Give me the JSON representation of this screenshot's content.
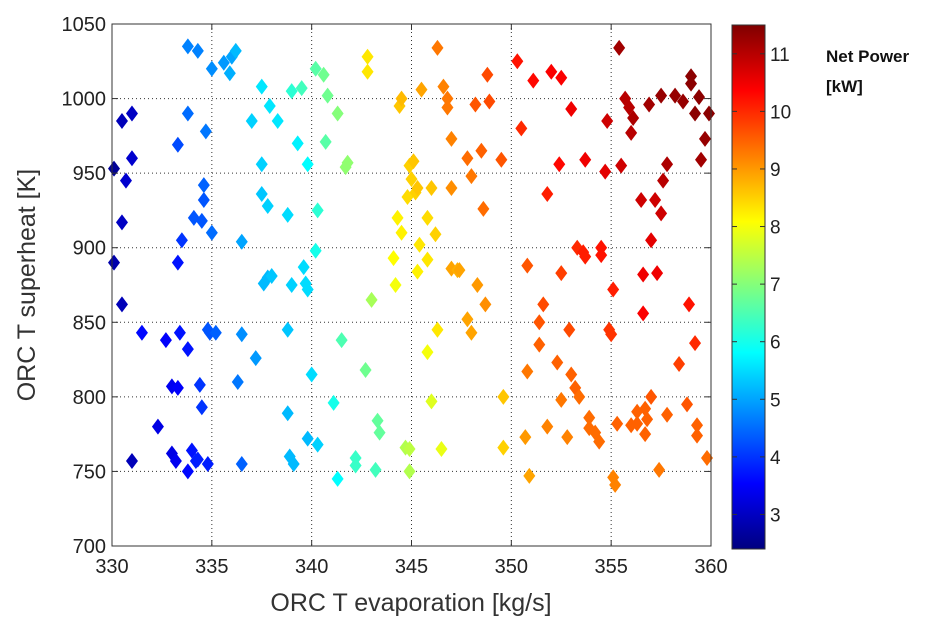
{
  "chart_data": {
    "type": "scatter",
    "xlabel": "ORC T evaporation [kg/s]",
    "ylabel": "ORC T superheat [K]",
    "xlim": [
      330,
      360
    ],
    "ylim": [
      700,
      1050
    ],
    "xticks": [
      "330",
      "335",
      "340",
      "345",
      "350",
      "355",
      "360"
    ],
    "yticks": [
      "700",
      "750",
      "800",
      "850",
      "900",
      "950",
      "1000",
      "1050"
    ],
    "grid": true,
    "marker": "diamond",
    "colormap": "jet",
    "colorbar": {
      "title_line1": "Net Power",
      "title_line2": "[kW]",
      "range": [
        2.4,
        11.5
      ],
      "ticks": [
        "3",
        "4",
        "5",
        "6",
        "7",
        "8",
        "9",
        "10",
        "11"
      ]
    },
    "points": [
      [
        330.1,
        953,
        2.6
      ],
      [
        330.5,
        985,
        2.9
      ],
      [
        331.0,
        990,
        3.0
      ],
      [
        331.0,
        960,
        3.1
      ],
      [
        330.7,
        945,
        3.1
      ],
      [
        330.5,
        917,
        3.0
      ],
      [
        330.1,
        890,
        2.8
      ],
      [
        330.5,
        862,
        2.9
      ],
      [
        331.0,
        757,
        2.9
      ],
      [
        331.5,
        843,
        3.6
      ],
      [
        332.3,
        780,
        3.3
      ],
      [
        332.7,
        838,
        3.5
      ],
      [
        333.0,
        807,
        3.4
      ],
      [
        333.0,
        762,
        3.3
      ],
      [
        333.2,
        757,
        3.4
      ],
      [
        333.4,
        843,
        3.7
      ],
      [
        333.3,
        806,
        3.5
      ],
      [
        333.3,
        969,
        4.2
      ],
      [
        333.3,
        890,
        3.7
      ],
      [
        333.5,
        905,
        4.0
      ],
      [
        333.8,
        750,
        3.6
      ],
      [
        333.8,
        832,
        3.7
      ],
      [
        333.8,
        990,
        4.5
      ],
      [
        334.0,
        764,
        3.7
      ],
      [
        334.1,
        920,
        4.3
      ],
      [
        334.2,
        757,
        3.8
      ],
      [
        334.3,
        758,
        3.8
      ],
      [
        334.4,
        808,
        4.0
      ],
      [
        334.5,
        918,
        4.3
      ],
      [
        334.5,
        793,
        4.0
      ],
      [
        334.6,
        932,
        4.3
      ],
      [
        334.6,
        942,
        4.4
      ],
      [
        334.7,
        978,
        4.6
      ],
      [
        334.8,
        755,
        3.8
      ],
      [
        334.8,
        845,
        4.3
      ],
      [
        334.9,
        843,
        4.3
      ],
      [
        335.0,
        910,
        4.5
      ],
      [
        335.2,
        843,
        4.4
      ],
      [
        333.8,
        1035,
        4.7
      ],
      [
        334.3,
        1032,
        4.7
      ],
      [
        335.0,
        1020,
        4.8
      ],
      [
        335.6,
        1024,
        4.9
      ],
      [
        336.0,
        1028,
        5.0
      ],
      [
        336.2,
        1032,
        5.2
      ],
      [
        335.9,
        1017,
        5.1
      ],
      [
        336.3,
        810,
        4.6
      ],
      [
        336.5,
        755,
        4.4
      ],
      [
        336.5,
        842,
        4.8
      ],
      [
        336.5,
        904,
        5.0
      ],
      [
        337.0,
        985,
        5.4
      ],
      [
        337.2,
        826,
        4.9
      ],
      [
        337.5,
        956,
        5.4
      ],
      [
        337.5,
        936,
        5.3
      ],
      [
        337.5,
        1008,
        5.6
      ],
      [
        337.6,
        876,
        5.2
      ],
      [
        337.8,
        880,
        5.2
      ],
      [
        337.8,
        928,
        5.4
      ],
      [
        337.9,
        995,
        5.6
      ],
      [
        338.0,
        881,
        5.3
      ],
      [
        338.3,
        985,
        5.6
      ],
      [
        338.8,
        922,
        5.5
      ],
      [
        338.8,
        789,
        5.2
      ],
      [
        338.8,
        845,
        5.3
      ],
      [
        338.9,
        760,
        5.2
      ],
      [
        339.0,
        875,
        5.4
      ],
      [
        339.1,
        755,
        5.2
      ],
      [
        339.3,
        970,
        5.7
      ],
      [
        339.6,
        887,
        5.5
      ],
      [
        339.7,
        876,
        5.5
      ],
      [
        339.8,
        956,
        5.8
      ],
      [
        339.8,
        872,
        5.5
      ],
      [
        339.0,
        1005,
        6.2
      ],
      [
        339.5,
        1007,
        6.4
      ],
      [
        339.8,
        772,
        5.2
      ],
      [
        340.0,
        815,
        5.5
      ],
      [
        340.2,
        898,
        6.0
      ],
      [
        340.3,
        768,
        5.4
      ],
      [
        340.3,
        925,
        6.2
      ],
      [
        340.2,
        1020,
        6.6
      ],
      [
        340.6,
        1016,
        6.8
      ],
      [
        340.7,
        971,
        6.6
      ],
      [
        340.8,
        1002,
        6.8
      ],
      [
        341.1,
        796,
        6.0
      ],
      [
        341.3,
        990,
        7.0
      ],
      [
        341.3,
        745,
        5.8
      ],
      [
        341.5,
        838,
        6.5
      ],
      [
        341.7,
        954,
        7.1
      ],
      [
        341.8,
        957,
        7.1
      ],
      [
        342.2,
        759,
        6.3
      ],
      [
        342.2,
        754,
        6.3
      ],
      [
        342.7,
        818,
        6.8
      ],
      [
        343.2,
        751,
        6.4
      ],
      [
        343.3,
        784,
        6.7
      ],
      [
        343.4,
        776,
        6.7
      ],
      [
        343.0,
        865,
        7.3
      ],
      [
        342.8,
        1028,
        8.3
      ],
      [
        342.8,
        1018,
        8.3
      ],
      [
        344.2,
        875,
        8.0
      ],
      [
        344.1,
        893,
        8.1
      ],
      [
        344.3,
        920,
        8.2
      ],
      [
        344.4,
        995,
        8.6
      ],
      [
        344.5,
        1000,
        8.7
      ],
      [
        344.5,
        910,
        8.2
      ],
      [
        344.7,
        766,
        7.4
      ],
      [
        344.8,
        934,
        8.4
      ],
      [
        344.9,
        765,
        7.5
      ],
      [
        344.9,
        750,
        7.4
      ],
      [
        344.9,
        955,
        8.5
      ],
      [
        345.0,
        946,
        8.5
      ],
      [
        345.1,
        958,
        8.6
      ],
      [
        345.2,
        937,
        8.5
      ],
      [
        345.3,
        940,
        8.6
      ],
      [
        345.3,
        884,
        8.2
      ],
      [
        345.4,
        902,
        8.3
      ],
      [
        345.5,
        1006,
        8.9
      ],
      [
        345.8,
        920,
        8.4
      ],
      [
        345.8,
        830,
        8.0
      ],
      [
        345.8,
        892,
        8.3
      ],
      [
        346.0,
        797,
        7.8
      ],
      [
        346.0,
        940,
        8.6
      ],
      [
        346.2,
        909,
        8.5
      ],
      [
        346.3,
        845,
        8.3
      ],
      [
        346.5,
        765,
        7.9
      ],
      [
        346.3,
        1034,
        9.3
      ],
      [
        346.6,
        1008,
        9.2
      ],
      [
        346.8,
        1000,
        9.3
      ],
      [
        346.8,
        994,
        9.3
      ],
      [
        347.0,
        940,
        9.1
      ],
      [
        347.0,
        973,
        9.2
      ],
      [
        347.0,
        886,
        8.9
      ],
      [
        347.3,
        885,
        8.8
      ],
      [
        347.4,
        885,
        8.9
      ],
      [
        347.8,
        852,
        8.9
      ],
      [
        347.8,
        960,
        9.4
      ],
      [
        348.0,
        843,
        8.9
      ],
      [
        348.0,
        948,
        9.3
      ],
      [
        348.2,
        996,
        9.6
      ],
      [
        348.3,
        875,
        9.0
      ],
      [
        348.5,
        965,
        9.5
      ],
      [
        348.6,
        926,
        9.4
      ],
      [
        348.7,
        862,
        9.1
      ],
      [
        348.8,
        1016,
        9.7
      ],
      [
        348.9,
        998,
        9.7
      ],
      [
        349.5,
        959,
        9.6
      ],
      [
        349.6,
        800,
        8.6
      ],
      [
        349.6,
        766,
        8.5
      ],
      [
        350.3,
        1025,
        10.2
      ],
      [
        350.5,
        980,
        10.0
      ],
      [
        350.7,
        773,
        9.0
      ],
      [
        350.8,
        888,
        9.6
      ],
      [
        350.9,
        747,
        8.9
      ],
      [
        350.8,
        817,
        9.3
      ],
      [
        351.1,
        1012,
        10.3
      ],
      [
        351.4,
        835,
        9.5
      ],
      [
        351.4,
        850,
        9.6
      ],
      [
        351.6,
        862,
        9.7
      ],
      [
        351.8,
        936,
        10.1
      ],
      [
        351.8,
        780,
        9.2
      ],
      [
        352.0,
        1018,
        10.4
      ],
      [
        352.3,
        823,
        9.5
      ],
      [
        352.4,
        956,
        10.3
      ],
      [
        352.5,
        883,
        9.8
      ],
      [
        352.5,
        1014,
        10.4
      ],
      [
        352.5,
        798,
        9.3
      ],
      [
        352.8,
        773,
        9.2
      ],
      [
        352.9,
        845,
        9.7
      ],
      [
        353.0,
        993,
        10.5
      ],
      [
        353.0,
        815,
        9.5
      ],
      [
        353.2,
        806,
        9.5
      ],
      [
        353.4,
        800,
        9.4
      ],
      [
        353.3,
        900,
        10.0
      ],
      [
        353.6,
        897,
        10.1
      ],
      [
        353.7,
        959,
        10.5
      ],
      [
        353.7,
        894,
        10.1
      ],
      [
        353.9,
        786,
        9.4
      ],
      [
        353.9,
        779,
        9.4
      ],
      [
        354.2,
        776,
        9.4
      ],
      [
        354.4,
        770,
        9.4
      ],
      [
        354.5,
        900,
        10.2
      ],
      [
        354.5,
        895,
        10.2
      ],
      [
        354.7,
        951,
        10.6
      ],
      [
        354.8,
        985,
        10.8
      ],
      [
        354.9,
        845,
        9.9
      ],
      [
        355.1,
        872,
        10.1
      ],
      [
        355.0,
        842,
        9.9
      ],
      [
        355.1,
        746,
        9.2
      ],
      [
        355.2,
        741,
        9.2
      ],
      [
        355.3,
        782,
        9.5
      ],
      [
        355.4,
        1034,
        11.2
      ],
      [
        355.5,
        955,
        10.8
      ],
      [
        355.7,
        1000,
        11.0
      ],
      [
        355.9,
        994,
        11.0
      ],
      [
        356.0,
        781,
        9.5
      ],
      [
        356.0,
        977,
        11.0
      ],
      [
        356.1,
        987,
        11.1
      ],
      [
        356.3,
        782,
        9.5
      ],
      [
        356.3,
        790,
        9.5
      ],
      [
        356.5,
        932,
        10.8
      ],
      [
        356.6,
        856,
        10.4
      ],
      [
        356.6,
        882,
        10.5
      ],
      [
        356.7,
        792,
        9.5
      ],
      [
        356.7,
        775,
        9.5
      ],
      [
        356.8,
        785,
        9.5
      ],
      [
        356.9,
        996,
        11.2
      ],
      [
        357.0,
        905,
        10.6
      ],
      [
        357.0,
        800,
        9.6
      ],
      [
        357.2,
        932,
        10.8
      ],
      [
        357.3,
        883,
        10.5
      ],
      [
        357.4,
        751,
        9.3
      ],
      [
        357.5,
        923,
        10.8
      ],
      [
        357.6,
        945,
        11.0
      ],
      [
        357.8,
        956,
        11.1
      ],
      [
        357.8,
        788,
        9.5
      ],
      [
        357.5,
        1002,
        11.3
      ],
      [
        358.2,
        1002,
        11.3
      ],
      [
        358.4,
        822,
        9.8
      ],
      [
        358.6,
        998,
        11.3
      ],
      [
        358.8,
        795,
        9.6
      ],
      [
        358.9,
        862,
        10.2
      ],
      [
        359.0,
        1015,
        11.4
      ],
      [
        359.0,
        1010,
        11.4
      ],
      [
        359.2,
        836,
        10.0
      ],
      [
        359.3,
        781,
        9.5
      ],
      [
        359.3,
        774,
        9.5
      ],
      [
        359.4,
        1001,
        11.4
      ],
      [
        359.5,
        959,
        11.2
      ],
      [
        359.2,
        990,
        11.4
      ],
      [
        359.7,
        973,
        11.3
      ],
      [
        359.8,
        759,
        9.4
      ],
      [
        359.9,
        990,
        11.4
      ]
    ]
  }
}
